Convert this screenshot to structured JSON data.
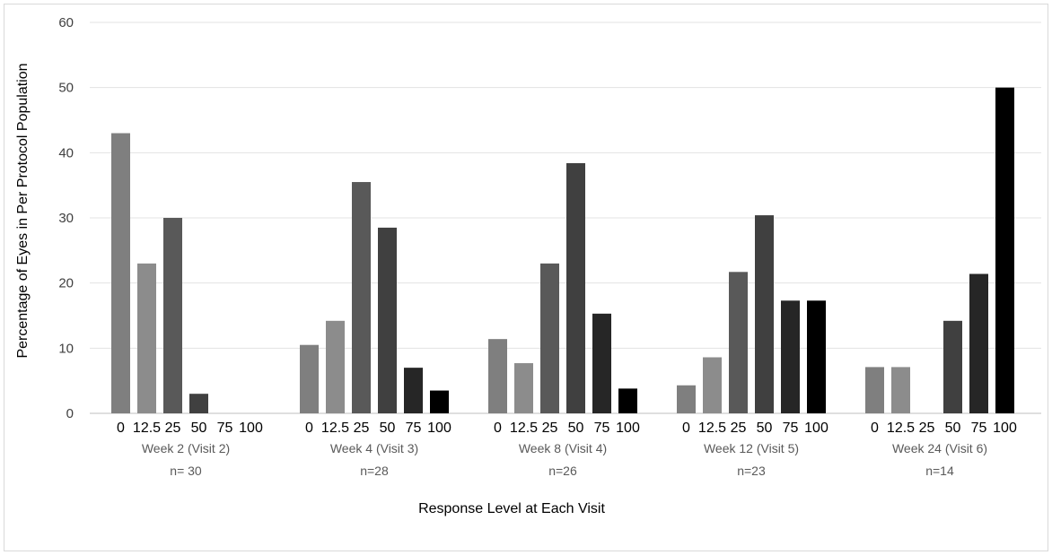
{
  "chart_data": {
    "type": "bar",
    "title": "",
    "xlabel": "Response Level at Each Visit",
    "ylabel": "Percentage of Eyes in Per Protocol Population",
    "ylim": [
      0,
      60
    ],
    "yticks": [
      0,
      10,
      20,
      30,
      40,
      50,
      60
    ],
    "grid": true,
    "levels": [
      "0",
      "12.5",
      "25",
      "50",
      "75",
      "100"
    ],
    "level_colors": [
      "#7f7f7f",
      "#8c8c8c",
      "#595959",
      "#404040",
      "#262626",
      "#000000"
    ],
    "groups": [
      {
        "label": "Week 2 (Visit 2)",
        "n": "n= 30",
        "values": [
          43,
          23,
          30,
          3,
          0,
          0
        ]
      },
      {
        "label": "Week 4 (Visit 3)",
        "n": "n=28",
        "values": [
          10.5,
          14.2,
          35.5,
          28.5,
          7,
          3.5
        ]
      },
      {
        "label": "Week 8 (Visit 4)",
        "n": "n=26",
        "values": [
          11.4,
          7.7,
          23,
          38.4,
          15.3,
          3.8
        ]
      },
      {
        "label": "Week 12 (Visit 5)",
        "n": "n=23",
        "values": [
          4.3,
          8.6,
          21.7,
          30.4,
          17.3,
          17.3
        ]
      },
      {
        "label": "Week 24 (Visit 6)",
        "n": "n=14",
        "values": [
          7.1,
          7.1,
          0,
          14.2,
          21.4,
          50
        ]
      }
    ]
  }
}
